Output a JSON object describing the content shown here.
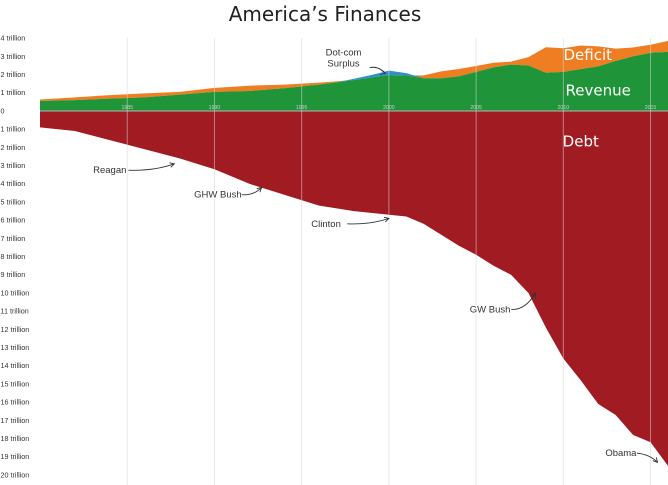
{
  "chart_data": {
    "type": "area",
    "title": "America’s Finances",
    "x_ticks": [
      "1985",
      "1990",
      "1995",
      "2000",
      "2005",
      "2010",
      "2015"
    ],
    "x_range": [
      1980,
      2016
    ],
    "y_range": [
      -20,
      4
    ],
    "y_ticks": [
      {
        "value": 4,
        "label": "4 trillion"
      },
      {
        "value": 3,
        "label": "3 trillion"
      },
      {
        "value": 2,
        "label": "2 trillion"
      },
      {
        "value": 1,
        "label": "1 trillion"
      },
      {
        "value": 0,
        "label": "0"
      },
      {
        "value": -1,
        "label": "1 trillion"
      },
      {
        "value": -2,
        "label": "2 trillion"
      },
      {
        "value": -3,
        "label": "3 trillion"
      },
      {
        "value": -4,
        "label": "4 trillion"
      },
      {
        "value": -5,
        "label": "5 trillion"
      },
      {
        "value": -6,
        "label": "6 trillion"
      },
      {
        "value": -7,
        "label": "7 trillion"
      },
      {
        "value": -8,
        "label": "8 trillion"
      },
      {
        "value": -9,
        "label": "9 trillion"
      },
      {
        "value": -10,
        "label": "10 trillion"
      },
      {
        "value": -11,
        "label": "11 trillion"
      },
      {
        "value": -12,
        "label": "12 trillion"
      },
      {
        "value": -13,
        "label": "13 trillion"
      },
      {
        "value": -14,
        "label": "14 trillion"
      },
      {
        "value": -15,
        "label": "15 trillion"
      },
      {
        "value": -16,
        "label": "16 trillion"
      },
      {
        "value": -17,
        "label": "17 trillion"
      },
      {
        "value": -18,
        "label": "18 trillion"
      },
      {
        "value": -19,
        "label": "19 trillion"
      },
      {
        "value": -20,
        "label": "20 trillion"
      }
    ],
    "series": [
      {
        "name": "Revenue",
        "color": "#1f9438",
        "x": [
          1980,
          1982,
          1984,
          1986,
          1988,
          1990,
          1992,
          1994,
          1996,
          1998,
          1999,
          2000,
          2001,
          2002,
          2003,
          2004,
          2005,
          2006,
          2007,
          2008,
          2009,
          2010,
          2011,
          2012,
          2013,
          2014,
          2015,
          2016
        ],
        "y": [
          0.55,
          0.6,
          0.68,
          0.75,
          0.9,
          1.05,
          1.1,
          1.25,
          1.45,
          1.7,
          1.85,
          1.98,
          1.95,
          1.8,
          1.8,
          1.9,
          2.15,
          2.4,
          2.55,
          2.5,
          2.1,
          2.15,
          2.3,
          2.45,
          2.75,
          3.0,
          3.2,
          3.25
        ]
      },
      {
        "name": "Deficit",
        "color": "#ef7d22",
        "x": [
          1980,
          1982,
          1984,
          1986,
          1988,
          1990,
          1992,
          1994,
          1996,
          1998,
          1999,
          2000,
          2001,
          2002,
          2003,
          2004,
          2005,
          2006,
          2007,
          2008,
          2009,
          2010,
          2011,
          2012,
          2013,
          2014,
          2015,
          2016
        ],
        "y": [
          0.08,
          0.15,
          0.19,
          0.22,
          0.15,
          0.22,
          0.29,
          0.2,
          0.11,
          0.0,
          0.0,
          0.0,
          0.0,
          0.16,
          0.38,
          0.41,
          0.32,
          0.25,
          0.16,
          0.46,
          1.4,
          1.3,
          1.3,
          1.1,
          0.68,
          0.49,
          0.44,
          0.6
        ]
      },
      {
        "name": "Dot-com Surplus",
        "color": "#2e8fd0",
        "x": [
          1997,
          1998,
          1999,
          2000,
          2001,
          2002
        ],
        "y": [
          0.0,
          0.07,
          0.13,
          0.24,
          0.13,
          0.0
        ]
      },
      {
        "name": "Debt",
        "color": "#a11b22",
        "x": [
          1980,
          1982,
          1984,
          1986,
          1988,
          1990,
          1992,
          1994,
          1996,
          1998,
          2000,
          2001,
          2002,
          2003,
          2004,
          2005,
          2006,
          2007,
          2008,
          2009,
          2010,
          2011,
          2012,
          2013,
          2014,
          2015,
          2016
        ],
        "y": [
          -0.9,
          -1.1,
          -1.6,
          -2.1,
          -2.6,
          -3.2,
          -4.0,
          -4.6,
          -5.2,
          -5.5,
          -5.7,
          -5.8,
          -6.2,
          -6.8,
          -7.4,
          -7.9,
          -8.5,
          -9.0,
          -10.0,
          -11.9,
          -13.6,
          -14.8,
          -16.1,
          -16.7,
          -17.8,
          -18.2,
          -19.5
        ]
      }
    ],
    "area_labels": [
      {
        "text": "Deficit",
        "series": "Deficit"
      },
      {
        "text": "Revenue",
        "series": "Revenue"
      },
      {
        "text": "Debt",
        "series": "Debt"
      }
    ],
    "annotations": [
      {
        "lines": [
          "Dot-com",
          "Surplus"
        ],
        "x": 1999.8,
        "y": 2.08
      },
      {
        "lines": [
          "Reagan"
        ],
        "x": 1987.7,
        "y": -2.9
      },
      {
        "lines": [
          "GHW Bush"
        ],
        "x": 1992.7,
        "y": -4.2
      },
      {
        "lines": [
          "Clinton"
        ],
        "x": 2000.0,
        "y": -5.9
      },
      {
        "lines": [
          "GW Bush"
        ],
        "x": 2008.4,
        "y": -10.0
      },
      {
        "lines": [
          "Obama"
        ],
        "x": 2015.4,
        "y": -19.3
      }
    ],
    "grid": true
  }
}
